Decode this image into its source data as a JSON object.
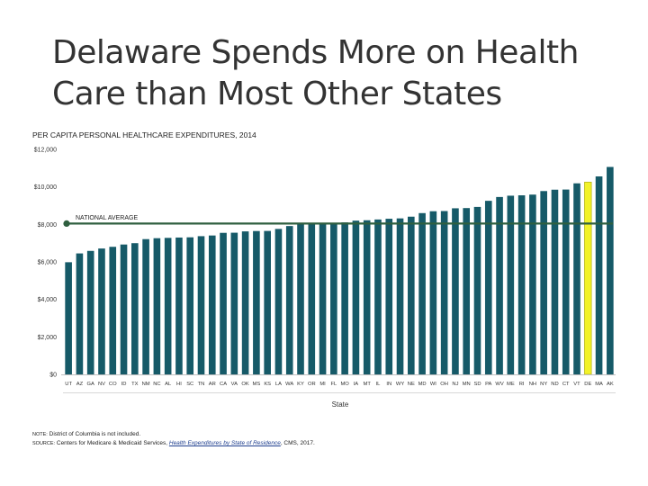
{
  "slide": {
    "title": "Delaware Spends More on Health Care than Most Other States"
  },
  "chart_data": {
    "type": "bar",
    "title": "PER CAPITA PERSONAL HEALTHCARE EXPENDITURES, 2014",
    "xlabel": "State",
    "ylabel": "",
    "ylim": [
      0,
      12000
    ],
    "yticks": [
      0,
      2000,
      4000,
      6000,
      8000,
      10000,
      12000
    ],
    "ytick_labels": [
      "$0",
      "$2,000",
      "$4,000",
      "$6,000",
      "$8,000",
      "$10,000",
      "$12,000"
    ],
    "grid": true,
    "categories": [
      "UT",
      "AZ",
      "GA",
      "NV",
      "CO",
      "ID",
      "TX",
      "NM",
      "NC",
      "AL",
      "HI",
      "SC",
      "TN",
      "AR",
      "CA",
      "VA",
      "OK",
      "MS",
      "KS",
      "LA",
      "WA",
      "KY",
      "OR",
      "MI",
      "FL",
      "MO",
      "IA",
      "MT",
      "IL",
      "IN",
      "WY",
      "NE",
      "MD",
      "WI",
      "OH",
      "NJ",
      "MN",
      "SD",
      "PA",
      "WV",
      "ME",
      "RI",
      "NH",
      "NY",
      "ND",
      "CT",
      "VT",
      "DE",
      "MA",
      "AK"
    ],
    "values": [
      5982,
      6452,
      6587,
      6714,
      6804,
      6927,
      6998,
      7214,
      7264,
      7281,
      7299,
      7311,
      7372,
      7408,
      7549,
      7556,
      7627,
      7646,
      7651,
      7759,
      7913,
      8004,
      8044,
      8055,
      8076,
      8107,
      8200,
      8221,
      8262,
      8300,
      8320,
      8412,
      8602,
      8702,
      8712,
      8859,
      8871,
      8933,
      9258,
      9462,
      9531,
      9551,
      9589,
      9778,
      9851,
      9859,
      10190,
      10254,
      10559,
      11064
    ],
    "colors": {
      "bar": "#165a68",
      "highlight": "#f2f22a",
      "highlight_outline": "#b5b51a",
      "reference_line": "#2f5f3f",
      "axis": "#c0c0c0"
    },
    "highlight_category": "DE",
    "reference_line": {
      "label": "NATIONAL AVERAGE",
      "value": 8045
    }
  },
  "footnotes": {
    "note_label": "NOTE:",
    "note_text": "District of Columbia is not included.",
    "source_label": "SOURCE:",
    "source_text": "Centers for Medicare & Medicaid Services,",
    "source_link": "Health Expenditures by State of Residence",
    "source_tail": ", CMS, 2017."
  }
}
